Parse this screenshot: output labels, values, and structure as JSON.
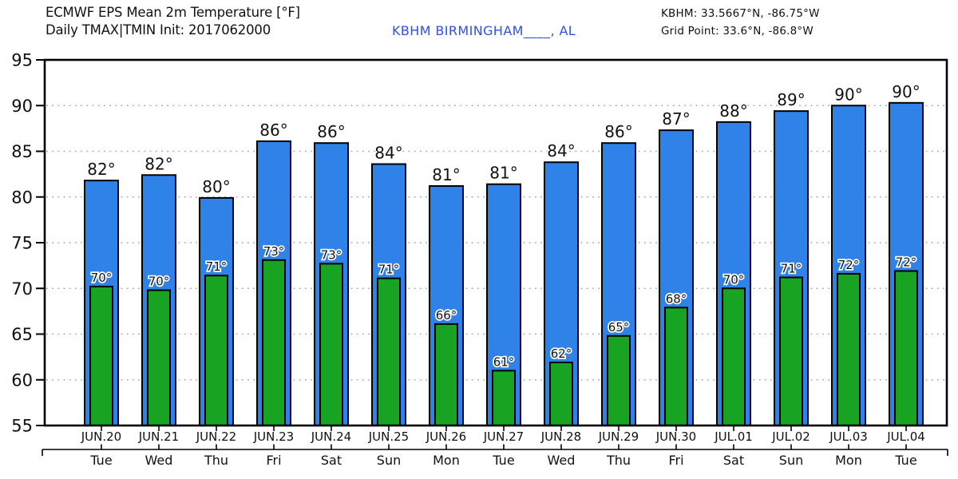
{
  "header": {
    "title_line1": "ECMWF EPS Mean 2m Temperature [°F]",
    "title_line2": "Daily TMAX|TMIN Init: 2017062000",
    "station": "KBHM BIRMINGHAM____, AL",
    "station_coords": "KBHM: 33.5667°N, -86.75°W",
    "grid_point": "Grid Point: 33.6°N, -86.8°W"
  },
  "colors": {
    "tmax_bar": "#2E82E8",
    "tmin_bar": "#18A322",
    "bar_outline": "#000000",
    "station_text": "#3050E8",
    "gridline": "#A8A8A8",
    "axis": "#000000"
  },
  "chart_data": {
    "type": "bar",
    "title": "ECMWF EPS Mean 2m Temperature [°F]",
    "subtitle": "Daily TMAX|TMIN Init: 2017062000",
    "station": "KBHM BIRMINGHAM____, AL",
    "categories": [
      "JUN.20",
      "JUN.21",
      "JUN.22",
      "JUN.23",
      "JUN.24",
      "JUN.25",
      "JUN.26",
      "JUN.27",
      "JUN.28",
      "JUN.29",
      "JUN.30",
      "JUL.01",
      "JUL.02",
      "JUL.03",
      "JUL.04"
    ],
    "day_labels": [
      "Tue",
      "Wed",
      "Thu",
      "Fri",
      "Sat",
      "Sun",
      "Mon",
      "Tue",
      "Wed",
      "Thu",
      "Fri",
      "Sat",
      "Sun",
      "Mon",
      "Tue"
    ],
    "series": [
      {
        "name": "TMAX",
        "values": [
          81.8,
          82.4,
          79.9,
          86.1,
          85.9,
          83.6,
          81.2,
          81.4,
          83.8,
          85.9,
          87.3,
          88.2,
          89.4,
          90.0,
          90.3
        ],
        "labels": [
          "82°",
          "82°",
          "80°",
          "86°",
          "86°",
          "84°",
          "81°",
          "81°",
          "84°",
          "86°",
          "87°",
          "88°",
          "89°",
          "90°",
          "90°"
        ]
      },
      {
        "name": "TMIN",
        "values": [
          70.2,
          69.8,
          71.4,
          73.1,
          72.7,
          71.1,
          66.1,
          61.0,
          61.9,
          64.8,
          67.9,
          70.0,
          71.2,
          71.6,
          71.9
        ],
        "labels": [
          "70°",
          "70°",
          "71°",
          "73°",
          "73°",
          "71°",
          "66°",
          "61°",
          "62°",
          "65°",
          "68°",
          "70°",
          "71°",
          "72°",
          "72°"
        ]
      }
    ],
    "xlabel": "",
    "ylabel": "",
    "ylim": [
      55,
      95
    ],
    "yticks": [
      55,
      60,
      65,
      70,
      75,
      80,
      85,
      90,
      95
    ],
    "grid_lines_at": [
      60,
      65,
      70,
      75,
      80,
      85,
      90
    ],
    "grid": "horizontal dotted",
    "legend_position": "none"
  }
}
